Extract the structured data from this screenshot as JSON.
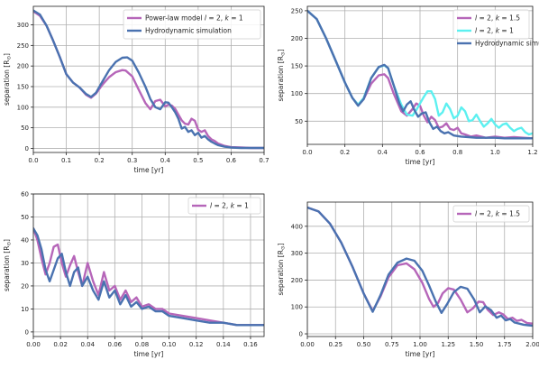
{
  "chart_data": [
    {
      "type": "line",
      "xlabel": "time [yr]",
      "ylabel": "separation [R",
      "ylabel_sub": "⊙",
      "ylabel_end": "]",
      "xlim": [
        0,
        0.7
      ],
      "ylim": [
        -10,
        345
      ],
      "xticks": [
        "0.0",
        "0.1",
        "0.2",
        "0.3",
        "0.4",
        "0.5",
        "0.6",
        "0.7"
      ],
      "xtick_values": [
        0,
        0.1,
        0.2,
        0.3,
        0.4,
        0.5,
        0.6,
        0.7
      ],
      "yticks": [
        "0",
        "50",
        "100",
        "150",
        "200",
        "250",
        "300"
      ],
      "ytick_values": [
        0,
        50,
        100,
        150,
        200,
        250,
        300
      ],
      "grid": true,
      "legend_position": "top-right",
      "series": [
        {
          "name": "Power-law model l = 2, k = 1",
          "legend": {
            "pre": "Power-law model ",
            "l": "l",
            "mid": " = 2, ",
            "k": "k",
            "post": " = 1"
          },
          "color": "#b666b9",
          "x": [
            0,
            0.02,
            0.04,
            0.06,
            0.08,
            0.1,
            0.12,
            0.14,
            0.16,
            0.175,
            0.19,
            0.21,
            0.23,
            0.25,
            0.27,
            0.28,
            0.3,
            0.32,
            0.34,
            0.355,
            0.37,
            0.385,
            0.4,
            0.41,
            0.42,
            0.43,
            0.44,
            0.45,
            0.46,
            0.47,
            0.48,
            0.49,
            0.5,
            0.51,
            0.52,
            0.53,
            0.54,
            0.55,
            0.56,
            0.58,
            0.6,
            0.63,
            0.66,
            0.7
          ],
          "y": [
            333,
            322,
            298,
            262,
            222,
            180,
            160,
            148,
            130,
            123,
            133,
            155,
            173,
            185,
            190,
            189,
            175,
            142,
            110,
            95,
            115,
            118,
            102,
            106,
            104,
            96,
            82,
            68,
            60,
            58,
            72,
            67,
            45,
            40,
            44,
            30,
            22,
            18,
            12,
            6,
            3,
            2,
            1,
            1
          ]
        },
        {
          "name": "Hydrodynamic simulation",
          "color": "#4a72b0",
          "x": [
            0,
            0.02,
            0.04,
            0.06,
            0.08,
            0.1,
            0.12,
            0.14,
            0.16,
            0.175,
            0.19,
            0.21,
            0.23,
            0.25,
            0.27,
            0.285,
            0.3,
            0.32,
            0.34,
            0.355,
            0.37,
            0.385,
            0.4,
            0.41,
            0.42,
            0.43,
            0.44,
            0.45,
            0.46,
            0.47,
            0.48,
            0.49,
            0.5,
            0.51,
            0.52,
            0.53,
            0.54,
            0.55,
            0.56,
            0.58,
            0.6,
            0.63,
            0.66,
            0.7
          ],
          "y": [
            335,
            325,
            298,
            262,
            222,
            180,
            160,
            148,
            132,
            125,
            135,
            163,
            190,
            210,
            220,
            221,
            213,
            184,
            150,
            120,
            100,
            95,
            112,
            111,
            100,
            88,
            72,
            48,
            52,
            40,
            44,
            32,
            38,
            26,
            30,
            22,
            16,
            12,
            8,
            4,
            2,
            1,
            1,
            1
          ]
        }
      ]
    },
    {
      "type": "line",
      "xlabel": "time [yr]",
      "ylabel": "separation [R",
      "ylabel_sub": "⊙",
      "ylabel_end": "]",
      "xlim": [
        0,
        1.2
      ],
      "ylim": [
        8,
        258
      ],
      "xticks": [
        "0.0",
        "0.2",
        "0.4",
        "0.6",
        "0.8",
        "1.0",
        "1.2"
      ],
      "xtick_values": [
        0,
        0.2,
        0.4,
        0.6,
        0.8,
        1.0,
        1.2
      ],
      "yticks": [
        "50",
        "100",
        "150",
        "200",
        "250"
      ],
      "ytick_values": [
        50,
        100,
        150,
        200,
        250
      ],
      "grid": true,
      "legend_position": "top-right",
      "series": [
        {
          "name": "l = 2, k = 1.5",
          "legend": {
            "pre": "",
            "l": "l",
            "mid": " = 2, ",
            "k": "k",
            "post": " = 1.5"
          },
          "color": "#b666b9",
          "x": [
            0,
            0.05,
            0.1,
            0.15,
            0.2,
            0.24,
            0.27,
            0.3,
            0.34,
            0.38,
            0.41,
            0.43,
            0.46,
            0.5,
            0.53,
            0.56,
            0.58,
            0.6,
            0.62,
            0.64,
            0.66,
            0.68,
            0.7,
            0.72,
            0.74,
            0.76,
            0.78,
            0.8,
            0.82,
            0.84,
            0.87,
            0.9,
            0.95,
            1.0,
            1.05,
            1.1,
            1.15,
            1.2
          ],
          "y": [
            250,
            235,
            200,
            160,
            120,
            92,
            80,
            90,
            118,
            133,
            135,
            128,
            100,
            68,
            60,
            72,
            82,
            78,
            60,
            48,
            58,
            52,
            38,
            40,
            46,
            36,
            34,
            38,
            28,
            26,
            22,
            24,
            20,
            22,
            20,
            21,
            20,
            19
          ]
        },
        {
          "name": "l = 2, k = 1",
          "legend": {
            "pre": "",
            "l": "l",
            "mid": " = 2, ",
            "k": "k",
            "post": " = 1"
          },
          "color": "#5cf0f0",
          "x": [
            0,
            0.05,
            0.1,
            0.15,
            0.2,
            0.24,
            0.27,
            0.3,
            0.34,
            0.38,
            0.41,
            0.43,
            0.46,
            0.5,
            0.53,
            0.56,
            0.58,
            0.6,
            0.62,
            0.64,
            0.66,
            0.68,
            0.7,
            0.72,
            0.74,
            0.76,
            0.78,
            0.8,
            0.82,
            0.84,
            0.86,
            0.88,
            0.9,
            0.92,
            0.94,
            0.96,
            0.98,
            1.0,
            1.02,
            1.04,
            1.06,
            1.08,
            1.1,
            1.12,
            1.14,
            1.16,
            1.18,
            1.2
          ],
          "y": [
            250,
            235,
            200,
            160,
            120,
            92,
            80,
            92,
            128,
            148,
            151,
            146,
            115,
            80,
            62,
            60,
            70,
            82,
            94,
            104,
            104,
            90,
            60,
            66,
            82,
            72,
            55,
            60,
            75,
            68,
            50,
            52,
            62,
            50,
            40,
            46,
            54,
            44,
            38,
            44,
            46,
            38,
            32,
            36,
            38,
            30,
            26,
            28
          ]
        },
        {
          "name": "Hydrodynamic simulation",
          "color": "#4a72b0",
          "x": [
            0,
            0.05,
            0.1,
            0.15,
            0.2,
            0.24,
            0.27,
            0.3,
            0.34,
            0.38,
            0.41,
            0.43,
            0.46,
            0.49,
            0.51,
            0.53,
            0.55,
            0.57,
            0.59,
            0.61,
            0.63,
            0.65,
            0.67,
            0.69,
            0.71,
            0.73,
            0.75,
            0.78,
            0.82,
            0.86,
            0.9,
            0.95,
            1.0,
            1.05,
            1.1,
            1.15,
            1.2
          ],
          "y": [
            250,
            235,
            200,
            160,
            120,
            92,
            78,
            90,
            128,
            148,
            152,
            146,
            115,
            82,
            68,
            80,
            86,
            70,
            58,
            64,
            66,
            48,
            36,
            40,
            32,
            28,
            30,
            24,
            22,
            21,
            20,
            20,
            20,
            19,
            19,
            19,
            19
          ]
        }
      ]
    },
    {
      "type": "line",
      "xlabel": "time [yr]",
      "ylabel": "separation [R",
      "ylabel_sub": "⊙",
      "ylabel_end": "]",
      "xlim": [
        0,
        0.17
      ],
      "ylim": [
        -2,
        60
      ],
      "xticks": [
        "0.00",
        "0.02",
        "0.04",
        "0.06",
        "0.08",
        "0.10",
        "0.12",
        "0.14",
        "0.16"
      ],
      "xtick_values": [
        0,
        0.02,
        0.04,
        0.06,
        0.08,
        0.1,
        0.12,
        0.14,
        0.16
      ],
      "yticks": [
        "0",
        "10",
        "20",
        "30",
        "40",
        "50",
        "60"
      ],
      "ytick_values": [
        0,
        10,
        20,
        30,
        40,
        50,
        60
      ],
      "grid": true,
      "legend_position": "top-right",
      "series": [
        {
          "name": "l = 2, k = 1",
          "legend": {
            "pre": "",
            "l": "l",
            "mid": " = 2, ",
            "k": "k",
            "post": " = 1"
          },
          "color": "#b666b9",
          "x": [
            0,
            0.003,
            0.006,
            0.009,
            0.012,
            0.015,
            0.018,
            0.021,
            0.024,
            0.027,
            0.03,
            0.033,
            0.036,
            0.04,
            0.044,
            0.048,
            0.052,
            0.056,
            0.06,
            0.064,
            0.068,
            0.072,
            0.076,
            0.08,
            0.085,
            0.09,
            0.095,
            0.1,
            0.11,
            0.12,
            0.13,
            0.14,
            0.15,
            0.16,
            0.17
          ],
          "y": [
            45,
            40,
            32,
            25,
            30,
            37,
            38,
            30,
            24,
            29,
            33,
            26,
            20,
            30,
            22,
            16,
            26,
            18,
            20,
            14,
            18,
            13,
            15,
            11,
            12,
            10,
            10,
            8,
            7,
            6,
            5,
            4,
            3,
            3,
            3
          ]
        },
        {
          "name": "Hydrodynamic simulation",
          "color": "#4a72b0",
          "x": [
            0,
            0.003,
            0.006,
            0.009,
            0.012,
            0.015,
            0.018,
            0.021,
            0.024,
            0.027,
            0.03,
            0.033,
            0.036,
            0.04,
            0.044,
            0.048,
            0.052,
            0.056,
            0.06,
            0.064,
            0.068,
            0.072,
            0.076,
            0.08,
            0.085,
            0.09,
            0.095,
            0.1,
            0.11,
            0.12,
            0.13,
            0.14,
            0.15,
            0.16,
            0.17
          ],
          "y": [
            45,
            42,
            36,
            27,
            22,
            27,
            32,
            34,
            26,
            20,
            26,
            28,
            20,
            24,
            18,
            14,
            22,
            15,
            18,
            12,
            16,
            11,
            13,
            10,
            11,
            9,
            9,
            7,
            6,
            5,
            4,
            4,
            3,
            3,
            3
          ]
        }
      ]
    },
    {
      "type": "line",
      "xlabel": "time [yr]",
      "ylabel": "separation [R",
      "ylabel_sub": "⊙",
      "ylabel_end": "]",
      "xlim": [
        0,
        2.0
      ],
      "ylim": [
        -10,
        490
      ],
      "xticks": [
        "0.00",
        "0.25",
        "0.50",
        "0.75",
        "1.00",
        "1.25",
        "1.50",
        "1.75",
        "2.00"
      ],
      "xtick_values": [
        0,
        0.25,
        0.5,
        0.75,
        1.0,
        1.25,
        1.5,
        1.75,
        2.0
      ],
      "yticks": [
        "0",
        "100",
        "200",
        "300",
        "400"
      ],
      "ytick_values": [
        0,
        100,
        200,
        300,
        400
      ],
      "grid": true,
      "legend_position": "top-right",
      "series": [
        {
          "name": "l = 2, k = 1.5",
          "legend": {
            "pre": "",
            "l": "l",
            "mid": " = 2, ",
            "k": "k",
            "post": " = 1.5"
          },
          "color": "#b666b9",
          "x": [
            0,
            0.1,
            0.2,
            0.3,
            0.4,
            0.5,
            0.58,
            0.65,
            0.72,
            0.8,
            0.88,
            0.95,
            1.02,
            1.08,
            1.12,
            1.16,
            1.2,
            1.25,
            1.3,
            1.36,
            1.42,
            1.47,
            1.52,
            1.56,
            1.6,
            1.65,
            1.7,
            1.74,
            1.78,
            1.82,
            1.86,
            1.9,
            1.95,
            2.0
          ],
          "y": [
            470,
            455,
            410,
            340,
            250,
            150,
            85,
            140,
            210,
            255,
            262,
            240,
            190,
            130,
            100,
            115,
            150,
            170,
            165,
            128,
            80,
            95,
            120,
            118,
            90,
            70,
            80,
            72,
            55,
            60,
            48,
            52,
            40,
            38
          ]
        },
        {
          "name": "Hydrodynamic simulation",
          "color": "#4a72b0",
          "x": [
            0,
            0.1,
            0.2,
            0.3,
            0.4,
            0.5,
            0.58,
            0.65,
            0.72,
            0.8,
            0.88,
            0.95,
            1.02,
            1.08,
            1.14,
            1.19,
            1.24,
            1.3,
            1.36,
            1.42,
            1.48,
            1.53,
            1.58,
            1.63,
            1.68,
            1.72,
            1.76,
            1.8,
            1.84,
            1.88,
            1.92,
            1.96,
            2.0
          ],
          "y": [
            470,
            455,
            410,
            340,
            250,
            150,
            82,
            145,
            220,
            265,
            280,
            272,
            235,
            180,
            120,
            78,
            110,
            155,
            175,
            168,
            128,
            80,
            102,
            88,
            60,
            68,
            50,
            55,
            42,
            38,
            34,
            32,
            30
          ]
        }
      ]
    }
  ]
}
